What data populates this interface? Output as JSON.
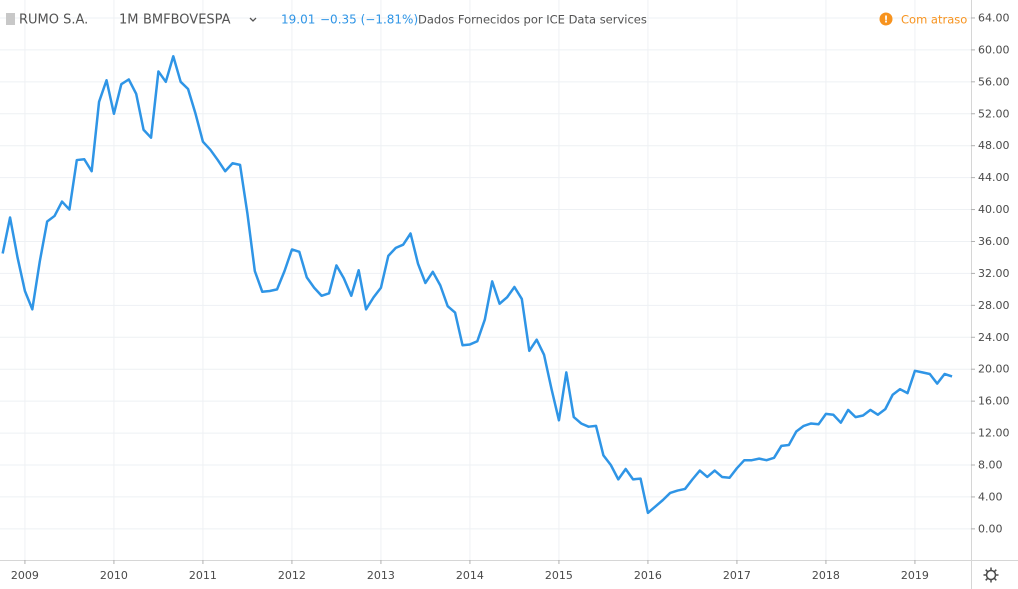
{
  "chart_data": {
    "type": "line",
    "header": {
      "symbol": "RUMO S.A.",
      "interval": "1M",
      "exchange": "BMFBOVESPA",
      "last": "19.01",
      "change": "−0.35 (−1.81%)",
      "source": "Dados Fornecidos por ICE Data services",
      "status": "Com atraso"
    },
    "x": [
      2008.75,
      2008.833,
      2008.917,
      2009,
      2009.083,
      2009.167,
      2009.25,
      2009.333,
      2009.417,
      2009.5,
      2009.583,
      2009.667,
      2009.75,
      2009.833,
      2009.917,
      2010,
      2010.083,
      2010.167,
      2010.25,
      2010.333,
      2010.417,
      2010.5,
      2010.583,
      2010.667,
      2010.75,
      2010.833,
      2010.917,
      2011,
      2011.083,
      2011.167,
      2011.25,
      2011.333,
      2011.417,
      2011.5,
      2011.583,
      2011.667,
      2011.75,
      2011.833,
      2011.917,
      2012,
      2012.083,
      2012.167,
      2012.25,
      2012.333,
      2012.417,
      2012.5,
      2012.583,
      2012.667,
      2012.75,
      2012.833,
      2012.917,
      2013,
      2013.083,
      2013.167,
      2013.25,
      2013.333,
      2013.417,
      2013.5,
      2013.583,
      2013.667,
      2013.75,
      2013.833,
      2013.917,
      2014,
      2014.083,
      2014.167,
      2014.25,
      2014.333,
      2014.417,
      2014.5,
      2014.583,
      2014.667,
      2014.75,
      2014.833,
      2014.917,
      2015,
      2015.083,
      2015.167,
      2015.25,
      2015.333,
      2015.417,
      2015.5,
      2015.583,
      2015.667,
      2015.75,
      2015.833,
      2015.917,
      2016,
      2016.083,
      2016.167,
      2016.25,
      2016.333,
      2016.417,
      2016.5,
      2016.583,
      2016.667,
      2016.75,
      2016.833,
      2016.917,
      2017,
      2017.083,
      2017.167,
      2017.25,
      2017.333,
      2017.417,
      2017.5,
      2017.583,
      2017.667,
      2017.75,
      2017.833,
      2017.917,
      2018,
      2018.083,
      2018.167,
      2018.25,
      2018.333,
      2018.417,
      2018.5,
      2018.583,
      2018.667,
      2018.75,
      2018.833,
      2018.917,
      2019,
      2019.083,
      2019.167,
      2019.25,
      2019.333,
      2019.417
    ],
    "series": [
      {
        "color": "#2f95e6",
        "values": [
          34.5,
          39,
          34,
          29.8,
          27.5,
          33.5,
          38.5,
          39.2,
          41,
          40,
          46.2,
          46.3,
          44.8,
          53.5,
          56.2,
          52,
          55.7,
          56.3,
          54.5,
          50,
          49,
          57.3,
          56,
          59.2,
          56,
          55.1,
          52,
          48.5,
          47.5,
          46.2,
          44.8,
          45.8,
          45.6,
          39.5,
          32.3,
          29.7,
          29.8,
          30,
          32.3,
          35,
          34.7,
          31.5,
          30.2,
          29.2,
          29.5,
          33,
          31.4,
          29.2,
          32.4,
          27.5,
          29,
          30.2,
          34.2,
          35.2,
          35.6,
          37,
          33.2,
          30.8,
          32.2,
          30.5,
          27.9,
          27.1,
          23,
          23.1,
          23.5,
          26.2,
          31,
          28.2,
          29,
          30.3,
          28.8,
          22.3,
          23.7,
          21.8,
          17.5,
          13.6,
          19.6,
          14,
          13.2,
          12.8,
          12.9,
          9.2,
          8,
          6.2,
          7.5,
          6.2,
          6.3,
          2,
          2.8,
          3.6,
          4.5,
          4.8,
          5,
          6.2,
          7.3,
          6.5,
          7.3,
          6.5,
          6.4,
          7.6,
          8.6,
          8.6,
          8.8,
          8.6,
          8.9,
          10.4,
          10.5,
          12.2,
          12.9,
          13.2,
          13.1,
          14.4,
          14.3,
          13.3,
          14.9,
          14,
          14.2,
          14.9,
          14.3,
          15,
          16.8,
          17.5,
          17,
          19.8,
          19.6,
          19.4,
          18.2,
          19.4,
          19.1
        ]
      }
    ],
    "xlim": [
      2008.72,
      2019.63
    ],
    "xticks": [
      2009,
      2010,
      2011,
      2012,
      2013,
      2014,
      2015,
      2016,
      2017,
      2018,
      2019
    ],
    "ylim": [
      -3.9,
      66.25
    ],
    "yticks": [
      {
        "value": 0,
        "label": "0.00"
      },
      {
        "value": 4,
        "label": "4.00"
      },
      {
        "value": 8,
        "label": "8.00"
      },
      {
        "value": 12,
        "label": "12.00"
      },
      {
        "value": 16,
        "label": "16.00"
      },
      {
        "value": 20,
        "label": "20.00"
      },
      {
        "value": 24,
        "label": "24.00"
      },
      {
        "value": 28,
        "label": "28.00"
      },
      {
        "value": 32,
        "label": "32.00"
      },
      {
        "value": 36,
        "label": "36.00"
      },
      {
        "value": 40,
        "label": "40.00"
      },
      {
        "value": 44,
        "label": "44.00"
      },
      {
        "value": 48,
        "label": "48.00"
      },
      {
        "value": 52,
        "label": "52.00"
      },
      {
        "value": 56,
        "label": "56.00"
      },
      {
        "value": 60,
        "label": "60.00"
      },
      {
        "value": 64,
        "label": "64.00"
      }
    ],
    "grid": true
  }
}
